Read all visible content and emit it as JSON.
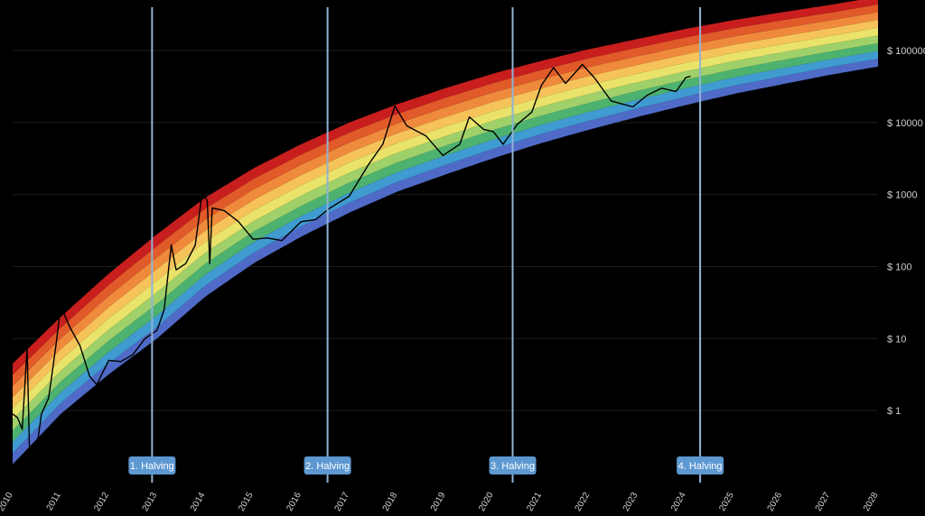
{
  "chart_data": {
    "type": "area",
    "y_scale": "log",
    "ylim": [
      0.1,
      400000
    ],
    "xlim": [
      2010.0,
      2028.0
    ],
    "grid": true,
    "y_ticks": [
      {
        "value": 1,
        "label": "$ 1"
      },
      {
        "value": 10,
        "label": "$ 10"
      },
      {
        "value": 100,
        "label": "$ 100"
      },
      {
        "value": 1000,
        "label": "$ 1000"
      },
      {
        "value": 10000,
        "label": "$ 10000"
      },
      {
        "value": 100000,
        "label": "$ 100000"
      }
    ],
    "x_ticks": [
      "2010",
      "2011",
      "2012",
      "2013",
      "2014",
      "2015",
      "2016",
      "2017",
      "2018",
      "2019",
      "2020",
      "2021",
      "2022",
      "2023",
      "2024",
      "2025",
      "2026",
      "2027",
      "2028"
    ],
    "rainbow_bands": {
      "colors": [
        "#4f6bc7",
        "#3f9bd0",
        "#4db26f",
        "#9fd06a",
        "#e9e36a",
        "#f5c35a",
        "#ef8a3c",
        "#e05a2a",
        "#c81e1e"
      ],
      "bottom_line": [
        {
          "x": 2010.0,
          "y": 0.18
        },
        {
          "x": 2011.0,
          "y": 0.9
        },
        {
          "x": 2012.0,
          "y": 3.2
        },
        {
          "x": 2013.0,
          "y": 10
        },
        {
          "x": 2014.0,
          "y": 38
        },
        {
          "x": 2015.0,
          "y": 110
        },
        {
          "x": 2016.0,
          "y": 260
        },
        {
          "x": 2017.0,
          "y": 560
        },
        {
          "x": 2018.0,
          "y": 1100
        },
        {
          "x": 2019.0,
          "y": 1900
        },
        {
          "x": 2020.0,
          "y": 3200
        },
        {
          "x": 2021.0,
          "y": 5200
        },
        {
          "x": 2022.0,
          "y": 8000
        },
        {
          "x": 2023.0,
          "y": 12000
        },
        {
          "x": 2024.0,
          "y": 17500
        },
        {
          "x": 2025.0,
          "y": 25000
        },
        {
          "x": 2026.0,
          "y": 34000
        },
        {
          "x": 2027.0,
          "y": 46000
        },
        {
          "x": 2028.0,
          "y": 60000
        }
      ],
      "top_line": [
        {
          "x": 2010.0,
          "y": 4.5
        },
        {
          "x": 2011.0,
          "y": 20
        },
        {
          "x": 2012.0,
          "y": 80
        },
        {
          "x": 2013.0,
          "y": 280
        },
        {
          "x": 2014.0,
          "y": 900
        },
        {
          "x": 2015.0,
          "y": 2300
        },
        {
          "x": 2016.0,
          "y": 5000
        },
        {
          "x": 2017.0,
          "y": 10000
        },
        {
          "x": 2018.0,
          "y": 18000
        },
        {
          "x": 2019.0,
          "y": 30000
        },
        {
          "x": 2020.0,
          "y": 48000
        },
        {
          "x": 2021.0,
          "y": 72000
        },
        {
          "x": 2022.0,
          "y": 105000
        },
        {
          "x": 2023.0,
          "y": 145000
        },
        {
          "x": 2024.0,
          "y": 200000
        },
        {
          "x": 2025.0,
          "y": 265000
        },
        {
          "x": 2026.0,
          "y": 340000
        },
        {
          "x": 2027.0,
          "y": 430000
        },
        {
          "x": 2028.0,
          "y": 560000
        }
      ]
    },
    "price_series": {
      "color": "#000000",
      "points": [
        {
          "x": 2010.0,
          "y": 0.9
        },
        {
          "x": 2010.1,
          "y": 0.8
        },
        {
          "x": 2010.2,
          "y": 0.55
        },
        {
          "x": 2010.3,
          "y": 7.5
        },
        {
          "x": 2010.35,
          "y": 0.3
        },
        {
          "x": 2010.5,
          "y": 0.3
        },
        {
          "x": 2010.6,
          "y": 0.9
        },
        {
          "x": 2010.75,
          "y": 1.5
        },
        {
          "x": 2010.9,
          "y": 8
        },
        {
          "x": 2011.0,
          "y": 28
        },
        {
          "x": 2011.2,
          "y": 14
        },
        {
          "x": 2011.4,
          "y": 8
        },
        {
          "x": 2011.6,
          "y": 3
        },
        {
          "x": 2011.75,
          "y": 2.3
        },
        {
          "x": 2012.0,
          "y": 5
        },
        {
          "x": 2012.25,
          "y": 4.8
        },
        {
          "x": 2012.5,
          "y": 6
        },
        {
          "x": 2012.75,
          "y": 10
        },
        {
          "x": 2013.0,
          "y": 13
        },
        {
          "x": 2013.15,
          "y": 25
        },
        {
          "x": 2013.3,
          "y": 200
        },
        {
          "x": 2013.4,
          "y": 90
        },
        {
          "x": 2013.6,
          "y": 110
        },
        {
          "x": 2013.8,
          "y": 200
        },
        {
          "x": 2013.95,
          "y": 1150
        },
        {
          "x": 2014.05,
          "y": 800
        },
        {
          "x": 2014.1,
          "y": 110
        },
        {
          "x": 2014.15,
          "y": 650
        },
        {
          "x": 2014.4,
          "y": 600
        },
        {
          "x": 2014.7,
          "y": 420
        },
        {
          "x": 2015.0,
          "y": 240
        },
        {
          "x": 2015.3,
          "y": 250
        },
        {
          "x": 2015.6,
          "y": 230
        },
        {
          "x": 2016.0,
          "y": 420
        },
        {
          "x": 2016.3,
          "y": 450
        },
        {
          "x": 2016.6,
          "y": 650
        },
        {
          "x": 2017.0,
          "y": 950
        },
        {
          "x": 2017.4,
          "y": 2600
        },
        {
          "x": 2017.7,
          "y": 5000
        },
        {
          "x": 2017.95,
          "y": 17000
        },
        {
          "x": 2018.2,
          "y": 9000
        },
        {
          "x": 2018.6,
          "y": 6500
        },
        {
          "x": 2018.95,
          "y": 3500
        },
        {
          "x": 2019.3,
          "y": 5000
        },
        {
          "x": 2019.5,
          "y": 12000
        },
        {
          "x": 2019.8,
          "y": 8000
        },
        {
          "x": 2020.0,
          "y": 7500
        },
        {
          "x": 2020.2,
          "y": 5000
        },
        {
          "x": 2020.5,
          "y": 9500
        },
        {
          "x": 2020.8,
          "y": 14000
        },
        {
          "x": 2021.0,
          "y": 33000
        },
        {
          "x": 2021.25,
          "y": 58000
        },
        {
          "x": 2021.5,
          "y": 35000
        },
        {
          "x": 2021.85,
          "y": 64000
        },
        {
          "x": 2022.1,
          "y": 42000
        },
        {
          "x": 2022.45,
          "y": 20000
        },
        {
          "x": 2022.9,
          "y": 16500
        },
        {
          "x": 2023.2,
          "y": 24000
        },
        {
          "x": 2023.5,
          "y": 30000
        },
        {
          "x": 2023.8,
          "y": 27000
        },
        {
          "x": 2024.0,
          "y": 42000
        },
        {
          "x": 2024.1,
          "y": 44000
        }
      ]
    },
    "halvings": [
      {
        "label": "1. Halving",
        "x": 2012.9
      },
      {
        "label": "2. Halving",
        "x": 2016.55
      },
      {
        "label": "3. Halving",
        "x": 2020.4
      },
      {
        "label": "4. Halving",
        "x": 2024.3
      }
    ],
    "grid_color": "#1e1e1e",
    "halving_color": "#8fb3d6",
    "label_box_color": "#5d98d1"
  }
}
